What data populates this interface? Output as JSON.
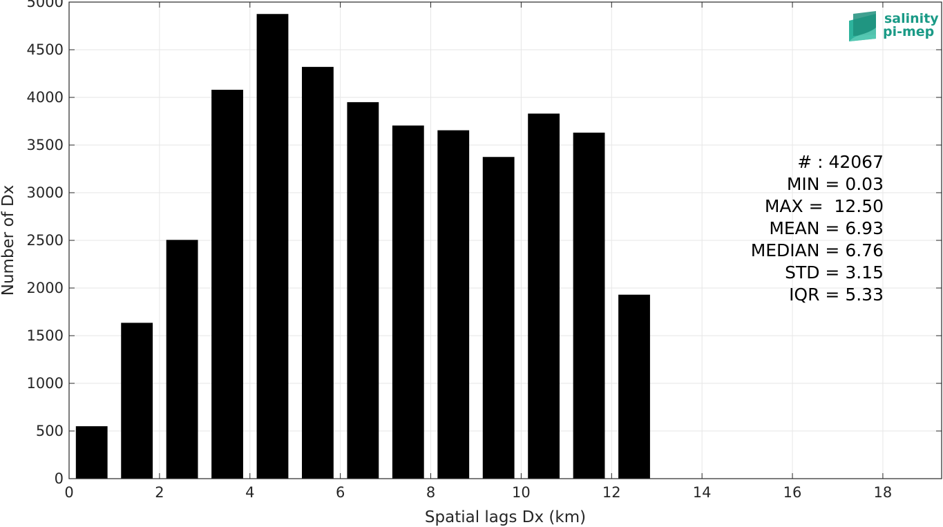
{
  "chart_data": {
    "type": "bar",
    "title": "",
    "xlabel": "Spatial lags Dx (km)",
    "ylabel": "Number of Dx",
    "xlim": [
      0,
      19.3
    ],
    "ylim": [
      0,
      5000
    ],
    "xticks": [
      0,
      2,
      4,
      6,
      8,
      10,
      12,
      14,
      16,
      18
    ],
    "yticks": [
      0,
      500,
      1000,
      1500,
      2000,
      2500,
      3000,
      3500,
      4000,
      4500,
      5000
    ],
    "grid": true,
    "bar_color": "#000000",
    "bar_width": 0.7,
    "x": [
      0.5,
      1.5,
      2.5,
      3.5,
      4.5,
      5.5,
      6.5,
      7.5,
      8.5,
      9.5,
      10.5,
      11.5,
      12.5
    ],
    "values": [
      550,
      1635,
      2505,
      4080,
      4875,
      4320,
      3950,
      3705,
      3655,
      3375,
      3830,
      3630,
      1930
    ]
  },
  "stats": [
    "# : 42067",
    "MIN = 0.03",
    "MAX =  12.50",
    "MEAN = 6.93",
    "MEDIAN = 6.76",
    "STD = 3.15",
    "IQR = 5.33"
  ],
  "logo": {
    "line1": "salinity",
    "line2": "pi-mep",
    "color": "#1a9a86"
  }
}
